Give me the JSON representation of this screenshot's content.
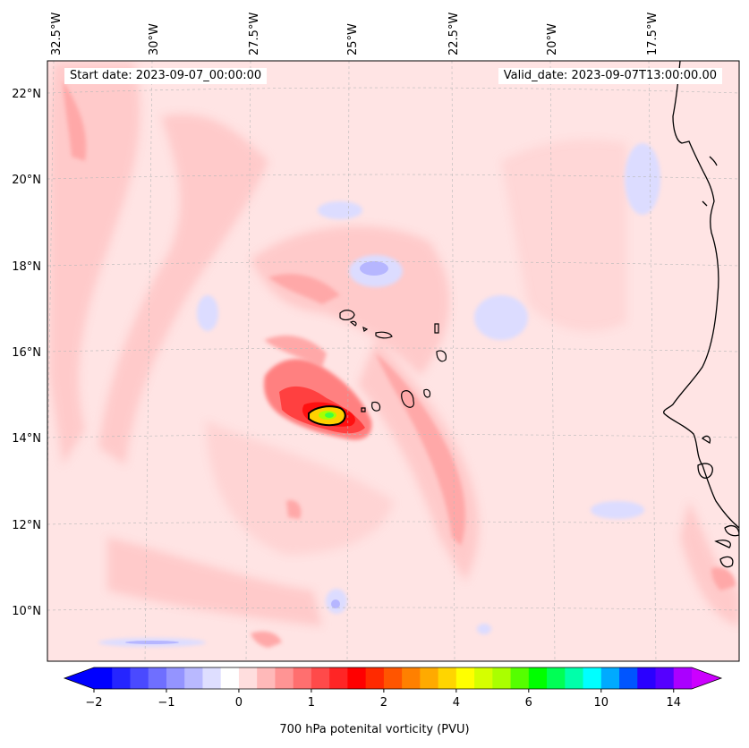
{
  "header": {
    "start_date": "Start date: 2023-09-07_00:00:00",
    "valid_date": "Valid_date: 2023-09-07T13:00:00.00"
  },
  "map": {
    "longitude_labels": [
      "32.5°W",
      "30°W",
      "27.5°W",
      "25°W",
      "22.5°W",
      "20°W",
      "17.5°W"
    ],
    "latitude_labels": [
      "22°N",
      "20°N",
      "18°N",
      "16°N",
      "14°N",
      "12°N",
      "10°N"
    ],
    "gridlines": true,
    "coastline_color": "#000000",
    "features": [
      "Cabo Verde islands",
      "West African coast",
      "vorticity maximum near 14.5°N 25.8°W"
    ]
  },
  "colorbar": {
    "label": "700 hPa potenital vorticity (PVU)",
    "tick_labels": [
      "−2",
      "−1",
      "0",
      "1",
      "2",
      "4",
      "6",
      "10",
      "14"
    ],
    "levels": [
      -2,
      -1.75,
      -1.5,
      -1.25,
      -1,
      -0.75,
      -0.5,
      -0.25,
      0,
      0.25,
      0.5,
      0.75,
      1,
      1.25,
      1.5,
      1.75,
      2,
      2.5,
      3,
      3.5,
      4,
      4.5,
      5,
      5.5,
      6,
      7,
      8,
      9,
      10,
      11,
      12,
      13,
      14,
      15
    ],
    "colors": [
      "#0000ff",
      "#2525ff",
      "#4a4aff",
      "#6f6fff",
      "#9494ff",
      "#b9b9ff",
      "#dedeff",
      "#ffffff",
      "#ffdede",
      "#ffb9b9",
      "#ff9494",
      "#ff6f6f",
      "#ff4a4a",
      "#ff2525",
      "#ff0000",
      "#ff2a00",
      "#ff5500",
      "#ff8000",
      "#ffaa00",
      "#ffd500",
      "#ffff00",
      "#d5ff00",
      "#aaff00",
      "#55ff00",
      "#00ff00",
      "#00ff55",
      "#00ffaa",
      "#00ffff",
      "#00aaff",
      "#0055ff",
      "#2a00ff",
      "#5500ff",
      "#aa00ff"
    ],
    "under_color": "#0000ff",
    "over_color": "#cc00ff"
  }
}
